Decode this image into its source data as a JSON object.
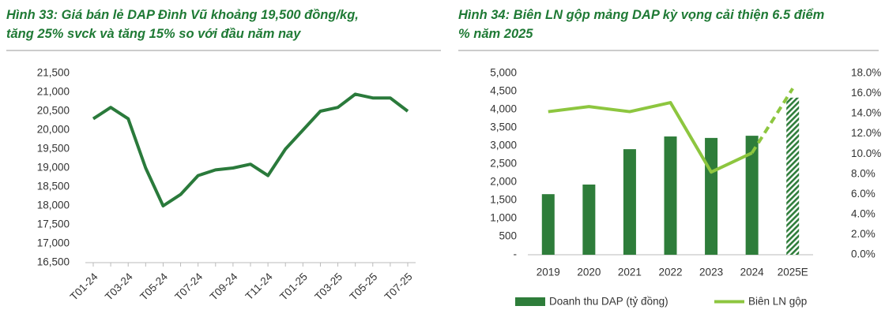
{
  "chart_data": [
    {
      "type": "line",
      "title": [
        "Hình 33: Giá bán lẻ DAP Đình Vũ khoảng 19,500 đồng/kg,",
        "tăng 25% svck và tăng 15% so với đầu năm nay"
      ],
      "categories": [
        "T01-24",
        null,
        "T03-24",
        null,
        "T05-24",
        null,
        "T07-24",
        null,
        "T09-24",
        null,
        "T11-24",
        null,
        "T01-25",
        null,
        "T03-25",
        null,
        "T05-25",
        null,
        "T07-25"
      ],
      "series": [
        {
          "color": "#2a7a3b",
          "values": [
            20300,
            20600,
            20300,
            19000,
            18000,
            18300,
            18800,
            18950,
            19000,
            19100,
            18800,
            19500,
            20000,
            20500,
            20600,
            20950,
            20850,
            20850,
            20500
          ]
        }
      ],
      "ylim": [
        16500,
        21500
      ],
      "yticks": [
        {
          "value": 16500,
          "label": "16,500"
        },
        {
          "value": 17000,
          "label": "17,000"
        },
        {
          "value": 17500,
          "label": "17,500"
        },
        {
          "value": 18000,
          "label": "18,000"
        },
        {
          "value": 18500,
          "label": "18,500"
        },
        {
          "value": 19000,
          "label": "19,000"
        },
        {
          "value": 19500,
          "label": "19,500"
        },
        {
          "value": 20000,
          "label": "20,000"
        },
        {
          "value": 20500,
          "label": "20,500"
        },
        {
          "value": 21000,
          "label": "21,000"
        },
        {
          "value": 21500,
          "label": "21,500"
        }
      ],
      "grid": false
    },
    {
      "type": "bar",
      "title": [
        "Hình 34: Biên LN gộp mảng DAP kỳ vọng cải thiện 6.5 điểm",
        "% năm 2025"
      ],
      "categories": [
        "2019",
        "2020",
        "2021",
        "2022",
        "2023",
        "2024",
        "2025E"
      ],
      "projected": [
        false,
        false,
        false,
        false,
        false,
        false,
        true
      ],
      "series": [
        {
          "name": "Doanh thu DAP (tỷ đồng)",
          "type": "bar",
          "color": "#2e7d3a",
          "values": [
            1670,
            1935,
            2910,
            3260,
            3220,
            3280,
            4330
          ]
        },
        {
          "name": "Biên LN gộp",
          "type": "line",
          "axis": "y2",
          "color": "#8dc63f",
          "values": [
            14.2,
            14.7,
            14.2,
            15.1,
            8.2,
            10.1,
            16.5
          ]
        }
      ],
      "ylim": [
        0,
        5000
      ],
      "yticks": [
        {
          "value": 0,
          "label": "-"
        },
        500,
        {
          "value": 1000,
          "label": "1,000"
        },
        {
          "value": 1500,
          "label": "1,500"
        },
        {
          "value": 2000,
          "label": "2,000"
        },
        {
          "value": 2500,
          "label": "2,500"
        },
        {
          "value": 3000,
          "label": "3,000"
        },
        {
          "value": 3500,
          "label": "3,500"
        },
        {
          "value": 4000,
          "label": "4,000"
        },
        {
          "value": 4500,
          "label": "4,500"
        },
        {
          "value": 5000,
          "label": "5,000"
        }
      ],
      "y2lim": [
        0,
        18
      ],
      "y2ticks": [
        {
          "value": 0,
          "label": "0.0%"
        },
        {
          "value": 2,
          "label": "2.0%"
        },
        {
          "value": 4,
          "label": "4.0%"
        },
        {
          "value": 6,
          "label": "6.0%"
        },
        {
          "value": 8,
          "label": "8.0%"
        },
        {
          "value": 10,
          "label": "10.0%"
        },
        {
          "value": 12,
          "label": "12.0%"
        },
        {
          "value": 14,
          "label": "14.0%"
        },
        {
          "value": 16,
          "label": "16.0%"
        },
        {
          "value": 18,
          "label": "18.0%"
        }
      ],
      "grid": false
    }
  ]
}
